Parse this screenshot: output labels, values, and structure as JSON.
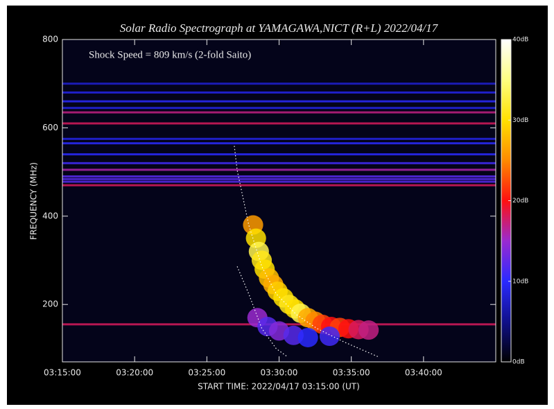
{
  "chart_data": {
    "type": "spectrogram",
    "title": "Solar Radio Spectrograph at YAMAGAWA,NICT (R+L)  2022/04/17",
    "annotation": "Shock Speed =  809 km/s (2-fold Saito)",
    "y_label": "FREQUENCY (MHz)",
    "x_label": "START TIME: 2022/04/17 03:15:00 (UT)",
    "background": "#04041a",
    "xlim": [
      0,
      30
    ],
    "xticks": [
      {
        "value": 0,
        "label": "03:15:00"
      },
      {
        "value": 5,
        "label": "03:20:00"
      },
      {
        "value": 10,
        "label": "03:25:00"
      },
      {
        "value": 15,
        "label": "03:30:00"
      },
      {
        "value": 20,
        "label": "03:35:00"
      },
      {
        "value": 25,
        "label": "03:40:00"
      }
    ],
    "ylim": [
      70,
      800
    ],
    "yticks": [
      200,
      400,
      600,
      800
    ],
    "zlim": [
      0,
      40
    ],
    "zticks": [
      {
        "value": 0,
        "label": "0dB"
      },
      {
        "value": 10,
        "label": "10dB"
      },
      {
        "value": 20,
        "label": "20dB"
      },
      {
        "value": 30,
        "label": "30dB"
      },
      {
        "value": 40,
        "label": "40dB"
      }
    ],
    "colormap": [
      {
        "value": 0,
        "color": "#000000"
      },
      {
        "value": 5,
        "color": "#10108a"
      },
      {
        "value": 10,
        "color": "#2a2aff"
      },
      {
        "value": 15,
        "color": "#9a2ad0"
      },
      {
        "value": 20,
        "color": "#ff1010"
      },
      {
        "value": 25,
        "color": "#ff8a00"
      },
      {
        "value": 30,
        "color": "#ffe000"
      },
      {
        "value": 35,
        "color": "#ffff80"
      },
      {
        "value": 40,
        "color": "#ffffff"
      }
    ],
    "interference_lines": {
      "frequencies": [
        700,
        680,
        660,
        645,
        635,
        610,
        575,
        565,
        540,
        520,
        505,
        490,
        484,
        478,
        470,
        155
      ],
      "db": [
        8,
        9,
        10,
        9,
        17,
        18,
        9,
        10,
        10,
        11,
        16,
        12,
        12,
        12,
        18,
        18
      ]
    },
    "burst": {
      "x": [
        13.2,
        13.4,
        13.6,
        13.8,
        14.0,
        14.3,
        14.6,
        14.9,
        15.3,
        15.7,
        16.1,
        16.5,
        17.0,
        17.5,
        18.0,
        18.6,
        19.2,
        19.8,
        20.5,
        21.2,
        13.5,
        14.2,
        15.0,
        16.0,
        17.0,
        18.5
      ],
      "y": [
        380,
        350,
        320,
        300,
        280,
        260,
        245,
        230,
        215,
        200,
        190,
        180,
        170,
        162,
        155,
        150,
        148,
        145,
        143,
        142,
        170,
        150,
        140,
        130,
        125,
        128
      ],
      "z": [
        26,
        30,
        33,
        31,
        30,
        28,
        27,
        29,
        30,
        31,
        30,
        33,
        27,
        25,
        22,
        20,
        22,
        20,
        18,
        17,
        15,
        12,
        14,
        12,
        10,
        11
      ]
    },
    "fit_curves": {
      "color": "#ffffff",
      "series": [
        {
          "x": [
            11.9,
            12.1,
            12.9,
            13.8,
            14.8,
            16.2,
            17.6,
            19.5,
            21.9
          ],
          "y": [
            559,
            504,
            380,
            286,
            224,
            177,
            146,
            115,
            81
          ]
        },
        {
          "x": [
            12.1,
            12.9,
            13.8,
            14.8,
            15.6
          ],
          "y": [
            286,
            224,
            146,
            100,
            81
          ]
        }
      ]
    }
  }
}
